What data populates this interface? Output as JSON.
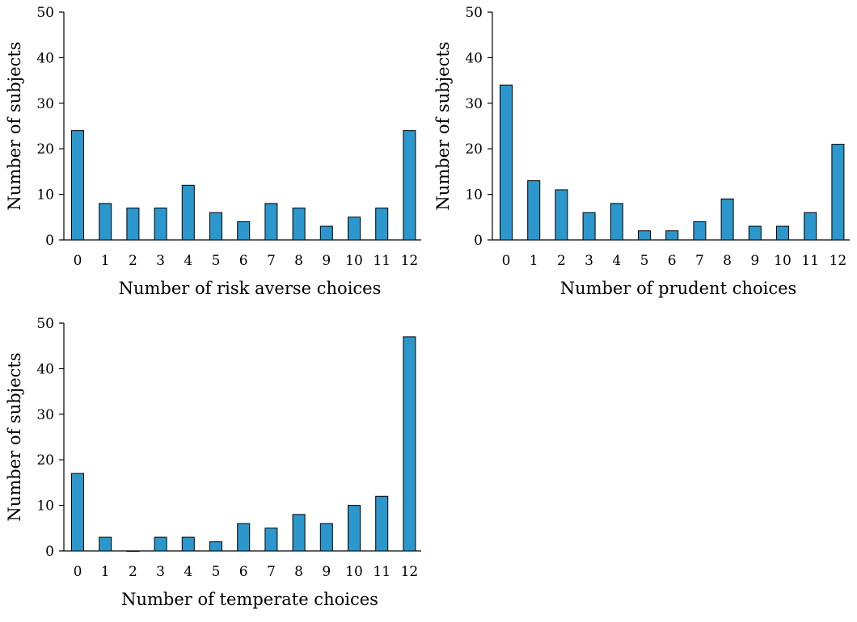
{
  "chart_data": [
    {
      "type": "bar",
      "xlabel": "Number of risk averse choices",
      "ylabel": "Number of subjects",
      "categories": [
        "0",
        "1",
        "2",
        "3",
        "4",
        "5",
        "6",
        "7",
        "8",
        "9",
        "10",
        "11",
        "12"
      ],
      "values": [
        24,
        8,
        7,
        7,
        12,
        6,
        4,
        8,
        7,
        3,
        5,
        7,
        24
      ],
      "ylim": [
        0,
        50
      ],
      "yticks": [
        "0",
        "10",
        "20",
        "30",
        "40",
        "50"
      ],
      "bar_color": "#2b97cc",
      "grid": false,
      "legend": "none"
    },
    {
      "type": "bar",
      "xlabel": "Number of prudent choices",
      "ylabel": "Number of subjects",
      "categories": [
        "0",
        "1",
        "2",
        "3",
        "4",
        "5",
        "6",
        "7",
        "8",
        "9",
        "10",
        "11",
        "12"
      ],
      "values": [
        34,
        13,
        11,
        6,
        8,
        2,
        2,
        4,
        9,
        3,
        3,
        6,
        21
      ],
      "ylim": [
        0,
        50
      ],
      "yticks": [
        "0",
        "10",
        "20",
        "30",
        "40",
        "50"
      ],
      "bar_color": "#2b97cc",
      "grid": false,
      "legend": "none"
    },
    {
      "type": "bar",
      "xlabel": "Number of temperate choices",
      "ylabel": "Number of subjects",
      "categories": [
        "0",
        "1",
        "2",
        "3",
        "4",
        "5",
        "6",
        "7",
        "8",
        "9",
        "10",
        "11",
        "12"
      ],
      "values": [
        17,
        3,
        0,
        3,
        3,
        2,
        6,
        5,
        8,
        6,
        10,
        12,
        47
      ],
      "ylim": [
        0,
        50
      ],
      "yticks": [
        "0",
        "10",
        "20",
        "30",
        "40",
        "50"
      ],
      "bar_color": "#2b97cc",
      "grid": false,
      "legend": "none"
    }
  ]
}
